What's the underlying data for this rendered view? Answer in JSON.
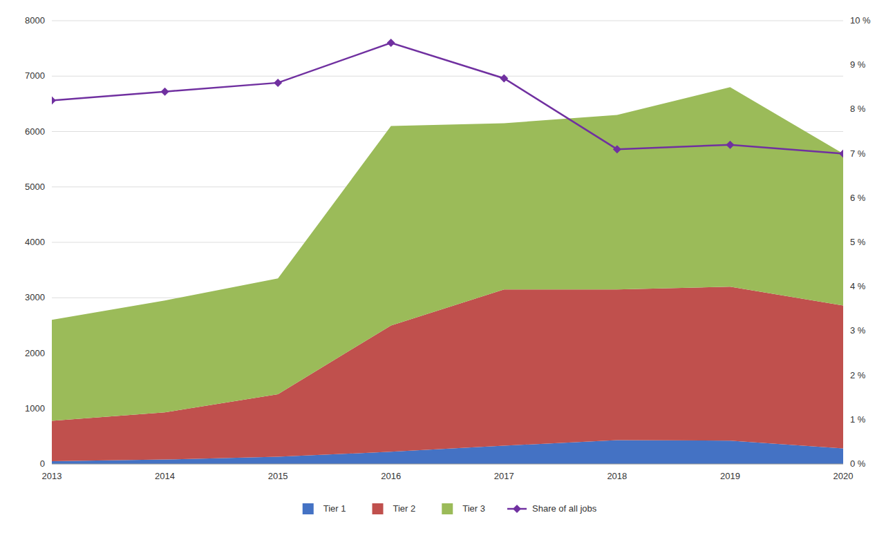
{
  "chart_data": {
    "type": "area",
    "stacked": true,
    "x": [
      2013,
      2014,
      2015,
      2016,
      2017,
      2018,
      2019,
      2020
    ],
    "xlim": [
      2013,
      2020
    ],
    "xticks": [
      2013,
      2014,
      2015,
      2016,
      2017,
      2018,
      2019,
      2020
    ],
    "ylim": [
      0,
      8000
    ],
    "yticks": [
      0,
      1000,
      2000,
      3000,
      4000,
      5000,
      6000,
      7000,
      8000
    ],
    "y2lim": [
      0,
      10
    ],
    "y2ticks": [
      {
        "value": 0,
        "label": "0 %"
      },
      {
        "value": 1,
        "label": "1 %"
      },
      {
        "value": 2,
        "label": "2 %"
      },
      {
        "value": 3,
        "label": "3 %"
      },
      {
        "value": 4,
        "label": "4 %"
      },
      {
        "value": 5,
        "label": "5 %"
      },
      {
        "value": 6,
        "label": "6 %"
      },
      {
        "value": 7,
        "label": "7 %"
      },
      {
        "value": 8,
        "label": "8 %"
      },
      {
        "value": 9,
        "label": "9 %"
      },
      {
        "value": 10,
        "label": "10 %"
      }
    ],
    "grid": true,
    "legend": "bottom",
    "series": [
      {
        "name": "Tier 1",
        "color": "#4472C4",
        "values": [
          50,
          80,
          130,
          220,
          330,
          430,
          420,
          280
        ]
      },
      {
        "name": "Tier 2",
        "color": "#C0504D",
        "values": [
          730,
          850,
          1130,
          2280,
          2820,
          2720,
          2780,
          2580
        ]
      },
      {
        "name": "Tier 3",
        "color": "#9BBB59",
        "values": [
          1820,
          2020,
          2090,
          3600,
          3000,
          3150,
          3600,
          2740
        ]
      },
      {
        "name": "Share of all jobs",
        "type": "line",
        "axis": "y2",
        "color": "#7030A0",
        "marker": "diamond",
        "values": [
          8.2,
          8.4,
          8.6,
          9.5,
          8.7,
          7.1,
          7.2,
          7.0
        ]
      }
    ]
  }
}
